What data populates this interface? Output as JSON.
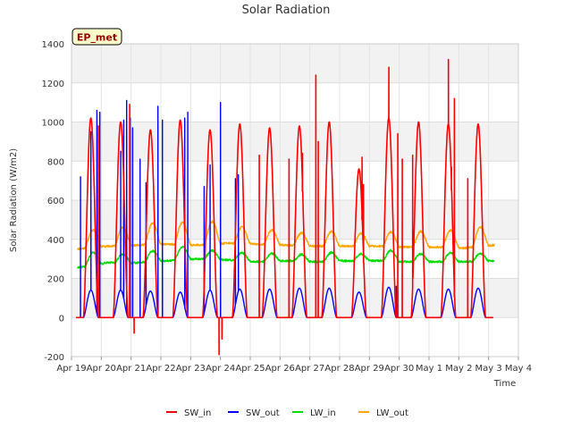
{
  "chart_data": {
    "type": "line",
    "title": "Solar Radiation",
    "xlabel": "Time",
    "ylabel": "Solar Radiation (W/m2)",
    "annotation": "EP_met",
    "ylim": [
      -200,
      1400
    ],
    "xlim": [
      0,
      15
    ],
    "yticks": [
      -200,
      0,
      200,
      400,
      600,
      800,
      1000,
      1200,
      1400
    ],
    "xtick_labels": [
      "Apr 19",
      "Apr 20",
      "Apr 21",
      "Apr 22",
      "Apr 23",
      "Apr 24",
      "Apr 25",
      "Apr 26",
      "Apr 27",
      "Apr 28",
      "Apr 29",
      "Apr 30",
      "May 1",
      "May 2",
      "May 3",
      "May 4"
    ],
    "grid": true,
    "legend_position": "bottom-center",
    "series": [
      {
        "name": "SW_in",
        "color": "#ff0000",
        "day_start": 0.15,
        "peaks": [
          1020,
          1000,
          960,
          1010,
          960,
          990,
          970,
          980,
          1000,
          760,
          1020,
          1000,
          990,
          990
        ],
        "spikes": [
          [
            0.9,
            980
          ],
          [
            1.95,
            1090
          ],
          [
            4.95,
            -190
          ],
          [
            5.05,
            -110
          ],
          [
            6.3,
            830
          ],
          [
            7.3,
            810
          ],
          [
            7.75,
            840
          ],
          [
            8.2,
            1240
          ],
          [
            8.28,
            900
          ],
          [
            9.75,
            820
          ],
          [
            9.8,
            680
          ],
          [
            10.65,
            1280
          ],
          [
            10.95,
            940
          ],
          [
            11.1,
            810
          ],
          [
            11.45,
            830
          ],
          [
            12.65,
            1320
          ],
          [
            12.75,
            770
          ],
          [
            12.85,
            1120
          ],
          [
            13.3,
            710
          ],
          [
            2.1,
            -80
          ]
        ]
      },
      {
        "name": "SW_out",
        "color": "#0000ff",
        "day_start": 0.15,
        "peaks": [
          140,
          140,
          135,
          130,
          140,
          145,
          145,
          150,
          150,
          130,
          155,
          145,
          145,
          150
        ],
        "spikes": [
          [
            0.3,
            720
          ],
          [
            0.65,
            950
          ],
          [
            0.85,
            1060
          ],
          [
            0.95,
            1050
          ],
          [
            1.65,
            850
          ],
          [
            1.75,
            1010
          ],
          [
            1.85,
            1110
          ],
          [
            1.97,
            1020
          ],
          [
            2.05,
            970
          ],
          [
            2.3,
            810
          ],
          [
            2.5,
            690
          ],
          [
            2.9,
            1080
          ],
          [
            3.05,
            1010
          ],
          [
            3.8,
            1020
          ],
          [
            3.9,
            1050
          ],
          [
            4.45,
            670
          ],
          [
            4.65,
            780
          ],
          [
            5.0,
            1100
          ],
          [
            5.5,
            710
          ],
          [
            5.6,
            730
          ],
          [
            10.9,
            160
          ],
          [
            10.95,
            140
          ]
        ]
      },
      {
        "name": "LW_in",
        "color": "#00dd00",
        "peaks": [
          320,
          325,
          335,
          355,
          345,
          335,
          325,
          325,
          330,
          325,
          345,
          325,
          330,
          325
        ],
        "base": [
          255,
          280,
          280,
          290,
          300,
          295,
          285,
          290,
          285,
          290,
          290,
          285,
          285,
          285,
          290
        ]
      },
      {
        "name": "LW_out",
        "color": "#ffa500",
        "peaks": [
          440,
          460,
          480,
          490,
          485,
          465,
          450,
          435,
          440,
          430,
          440,
          440,
          450,
          455
        ],
        "base": [
          350,
          365,
          370,
          375,
          370,
          380,
          375,
          370,
          365,
          365,
          365,
          360,
          360,
          355,
          370
        ]
      }
    ]
  }
}
